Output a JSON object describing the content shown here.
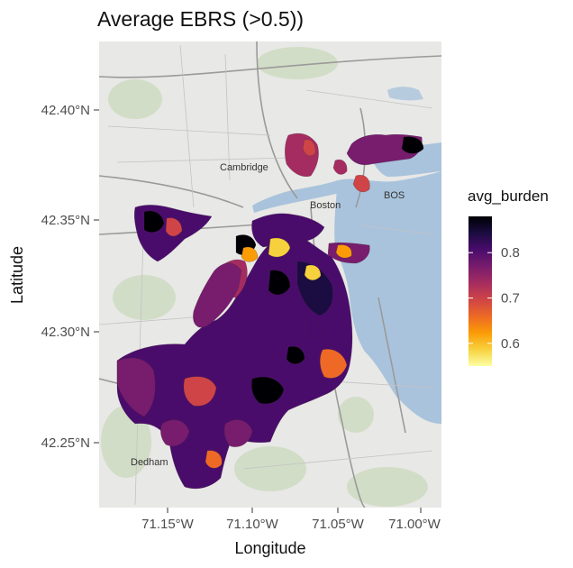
{
  "title": "Average EBRS (>0.5))",
  "axes": {
    "xlabel": "Longitude",
    "ylabel": "Latitude",
    "x_ticks": [
      "71.15°W",
      "71.10°W",
      "71.05°W",
      "71.00°W"
    ],
    "y_ticks": [
      "42.40°N",
      "42.35°N",
      "42.30°N",
      "42.25°N"
    ],
    "xlim": [
      -71.19,
      -70.99
    ],
    "ylim": [
      42.22,
      42.44
    ]
  },
  "legend": {
    "title": "avg_burden",
    "ticks": [
      "0.8",
      "0.7",
      "0.6"
    ],
    "range": [
      0.55,
      0.88
    ],
    "colors": [
      "#fcffa4",
      "#f7d13d",
      "#fb9b06",
      "#ed6925",
      "#cf4446",
      "#a52c60",
      "#781c6d",
      "#4a0c6b",
      "#1b0c41",
      "#000004"
    ]
  },
  "place_labels": [
    "Cambridge",
    "Boston",
    "Dedham",
    "BOS"
  ],
  "chart_data": {
    "type": "map",
    "title": "Average EBRS (>0.5))",
    "xlabel": "Longitude",
    "ylabel": "Latitude",
    "xlim": [
      -71.19,
      -70.99
    ],
    "ylim": [
      42.22,
      42.44
    ],
    "color_variable": "avg_burden",
    "color_range": [
      0.55,
      0.88
    ],
    "colormap": "inferno (reversed)",
    "legend_placement": "right",
    "basemap": "street map (light)"
  }
}
